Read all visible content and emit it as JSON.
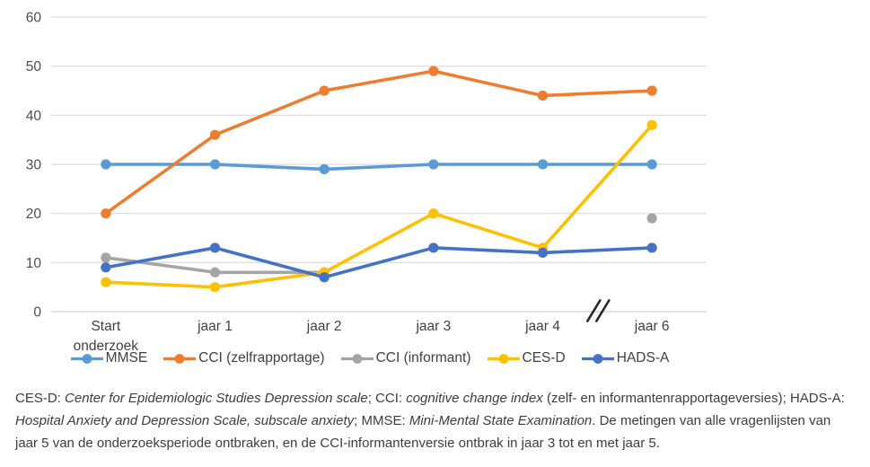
{
  "chart_data": {
    "type": "line",
    "categories": [
      "Start\nonderzoek",
      "jaar 1",
      "jaar 2",
      "jaar 3",
      "jaar 4",
      "jaar 6"
    ],
    "x_axis_break_between": [
      "jaar 4",
      "jaar 6"
    ],
    "title": "",
    "xlabel": "",
    "ylabel": "",
    "ylim": [
      0,
      60
    ],
    "ytick_step": 10,
    "yticks": [
      0,
      10,
      20,
      30,
      40,
      50,
      60
    ],
    "grid": true,
    "legend_position": "bottom",
    "series": [
      {
        "name": "MMSE",
        "color": "#5B9BD5",
        "values": [
          30,
          30,
          29,
          30,
          30,
          30
        ]
      },
      {
        "name": "CCI (zelfrapportage)",
        "color": "#ED7D31",
        "values": [
          20,
          36,
          45,
          49,
          44,
          45
        ]
      },
      {
        "name": "CCI (informant)",
        "color": "#A5A5A5",
        "values": [
          11,
          8,
          8,
          null,
          null,
          19
        ]
      },
      {
        "name": "CES-D",
        "color": "#FFC000",
        "values": [
          6,
          5,
          8,
          20,
          13,
          38
        ]
      },
      {
        "name": "HADS-A",
        "color": "#4472C4",
        "values": [
          9,
          13,
          7,
          13,
          12,
          13
        ]
      }
    ]
  },
  "colors": {
    "gridline": "#d9d9d9",
    "axis_line": "#cfcfcf",
    "tick_label": "#4d4d4d",
    "category_label": "#404040",
    "break_mark": "#262626"
  },
  "caption": {
    "segments": [
      {
        "t": "CES-D: ",
        "i": false
      },
      {
        "t": "Center for Epidemiologic Studies Depression scale",
        "i": true
      },
      {
        "t": "; CCI: ",
        "i": false
      },
      {
        "t": "cognitive change index",
        "i": true
      },
      {
        "t": " (zelf- en informantenrapportageversies); HADS-A: ",
        "i": false
      },
      {
        "t": "Hospital Anxiety and Depression Scale, subscale anxiety",
        "i": true
      },
      {
        "t": "; MMSE: ",
        "i": false
      },
      {
        "t": "Mini-Mental State Examination",
        "i": true
      },
      {
        "t": ". De metingen van alle vragenlijsten van jaar 5 van de onderzoeksperiode ontbraken, en de CCI-informantenversie ontbrak in jaar 3 tot en met jaar 5.",
        "i": false
      }
    ]
  }
}
